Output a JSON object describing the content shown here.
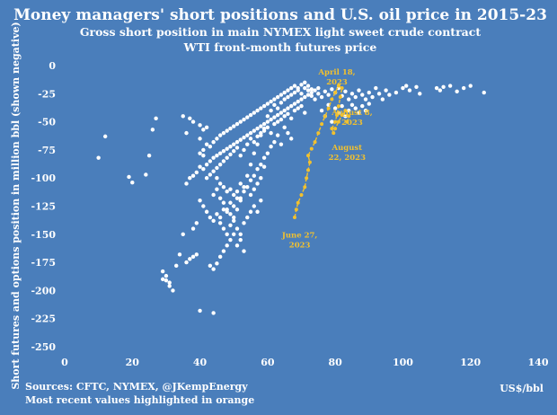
{
  "chart_data": {
    "type": "scatter",
    "title": "Money managers' short positions and U.S. oil price in 2015-23",
    "subtitle_lines": [
      "Gross short position in main NYMEX light sweet crude contract",
      "WTI front-month futures price"
    ],
    "xlabel": "US$/bbl",
    "ylabel": "Short futures and options position in million bbl (shown negative)",
    "xlim": [
      0,
      140
    ],
    "ylim": [
      -250,
      0
    ],
    "x_ticks": [
      0,
      20,
      40,
      60,
      80,
      100,
      120,
      140
    ],
    "y_ticks": [
      0,
      -25,
      -50,
      -75,
      -100,
      -125,
      -150,
      -175,
      -200,
      -225,
      -250
    ],
    "grid": false,
    "colors": {
      "background": "#4a7ebb",
      "text": "#ffffff",
      "historical": "#ffffff",
      "recent": "#f2c12e"
    },
    "footer": {
      "sources": "Sources: CFTC, NYMEX, @JKempEnergy",
      "note": "Most recent values highlighted in orange"
    },
    "annotations": [
      {
        "label": "April 18,\n2023",
        "x": 80.5,
        "y": -8
      },
      {
        "label": "August 8,\n2023",
        "x": 85,
        "y": -44
      },
      {
        "label": "August\n22, 2023",
        "x": 83.5,
        "y": -75
      },
      {
        "label": "June 27,\n2023",
        "x": 69.5,
        "y": -153
      }
    ],
    "series": [
      {
        "name": "2015-23",
        "points": [
          [
            10,
            -82
          ],
          [
            12,
            -63
          ],
          [
            19,
            -99
          ],
          [
            20,
            -104
          ],
          [
            24,
            -97
          ],
          [
            25,
            -80
          ],
          [
            26,
            -57
          ],
          [
            27,
            -47
          ],
          [
            35,
            -45
          ],
          [
            36,
            -60
          ],
          [
            35,
            -150
          ],
          [
            36,
            -175
          ],
          [
            37,
            -172
          ],
          [
            38,
            -170
          ],
          [
            39,
            -168
          ],
          [
            40,
            -218
          ],
          [
            44,
            -220
          ],
          [
            37,
            -47
          ],
          [
            38,
            -50
          ],
          [
            40,
            -53
          ],
          [
            41,
            -57
          ],
          [
            42,
            -55
          ],
          [
            40,
            -65
          ],
          [
            41,
            -75
          ],
          [
            29,
            -183
          ],
          [
            30,
            -187
          ],
          [
            30,
            -191
          ],
          [
            31,
            -196
          ],
          [
            32,
            -200
          ],
          [
            29,
            -190
          ],
          [
            31,
            -193
          ],
          [
            33,
            -178
          ],
          [
            34,
            -168
          ],
          [
            38,
            -145
          ],
          [
            39,
            -140
          ],
          [
            43,
            -178
          ],
          [
            44,
            -181
          ],
          [
            45,
            -176
          ],
          [
            46,
            -170
          ],
          [
            47,
            -165
          ],
          [
            48,
            -160
          ],
          [
            49,
            -155
          ],
          [
            50,
            -150
          ],
          [
            51,
            -145
          ],
          [
            52,
            -150
          ],
          [
            53,
            -140
          ],
          [
            54,
            -135
          ],
          [
            55,
            -130
          ],
          [
            56,
            -125
          ],
          [
            57,
            -130
          ],
          [
            58,
            -120
          ],
          [
            55,
            -115
          ],
          [
            56,
            -110
          ],
          [
            57,
            -105
          ],
          [
            58,
            -100
          ],
          [
            59,
            -90
          ],
          [
            36,
            -105
          ],
          [
            37,
            -100
          ],
          [
            38,
            -98
          ],
          [
            39,
            -95
          ],
          [
            40,
            -90
          ],
          [
            41,
            -92
          ],
          [
            42,
            -88
          ],
          [
            43,
            -85
          ],
          [
            44,
            -82
          ],
          [
            45,
            -80
          ],
          [
            46,
            -78
          ],
          [
            47,
            -76
          ],
          [
            48,
            -74
          ],
          [
            49,
            -72
          ],
          [
            50,
            -70
          ],
          [
            51,
            -68
          ],
          [
            52,
            -66
          ],
          [
            53,
            -64
          ],
          [
            54,
            -62
          ],
          [
            55,
            -60
          ],
          [
            56,
            -58
          ],
          [
            57,
            -56
          ],
          [
            58,
            -54
          ],
          [
            59,
            -52
          ],
          [
            60,
            -50
          ],
          [
            61,
            -48
          ],
          [
            62,
            -46
          ],
          [
            63,
            -44
          ],
          [
            64,
            -42
          ],
          [
            65,
            -40
          ],
          [
            66,
            -38
          ],
          [
            67,
            -36
          ],
          [
            68,
            -34
          ],
          [
            69,
            -32
          ],
          [
            70,
            -30
          ],
          [
            71,
            -28
          ],
          [
            72,
            -26
          ],
          [
            73,
            -24
          ],
          [
            74,
            -22
          ],
          [
            75,
            -20
          ],
          [
            40,
            -120
          ],
          [
            41,
            -125
          ],
          [
            42,
            -130
          ],
          [
            43,
            -135
          ],
          [
            44,
            -115
          ],
          [
            45,
            -110
          ],
          [
            46,
            -118
          ],
          [
            47,
            -122
          ],
          [
            48,
            -128
          ],
          [
            49,
            -132
          ],
          [
            50,
            -138
          ],
          [
            51,
            -128
          ],
          [
            52,
            -118
          ],
          [
            53,
            -108
          ],
          [
            54,
            -98
          ],
          [
            55,
            -88
          ],
          [
            56,
            -78
          ],
          [
            57,
            -70
          ],
          [
            58,
            -62
          ],
          [
            59,
            -58
          ],
          [
            60,
            -55
          ],
          [
            61,
            -60
          ],
          [
            62,
            -52
          ],
          [
            63,
            -50
          ],
          [
            64,
            -48
          ],
          [
            65,
            -45
          ],
          [
            66,
            -43
          ],
          [
            67,
            -47
          ],
          [
            68,
            -40
          ],
          [
            69,
            -38
          ],
          [
            70,
            -36
          ],
          [
            71,
            -42
          ],
          [
            42,
            -100
          ],
          [
            43,
            -97
          ],
          [
            44,
            -94
          ],
          [
            45,
            -91
          ],
          [
            46,
            -88
          ],
          [
            47,
            -85
          ],
          [
            48,
            -82
          ],
          [
            49,
            -79
          ],
          [
            50,
            -76
          ],
          [
            51,
            -73
          ],
          [
            52,
            -80
          ],
          [
            53,
            -75
          ],
          [
            54,
            -70
          ],
          [
            55,
            -65
          ],
          [
            56,
            -68
          ],
          [
            57,
            -63
          ],
          [
            58,
            -60
          ],
          [
            59,
            -56
          ],
          [
            60,
            -45
          ],
          [
            61,
            -40
          ],
          [
            62,
            -35
          ],
          [
            63,
            -38
          ],
          [
            64,
            -33
          ],
          [
            65,
            -30
          ],
          [
            66,
            -28
          ],
          [
            67,
            -26
          ],
          [
            68,
            -24
          ],
          [
            69,
            -22
          ],
          [
            70,
            -25
          ],
          [
            71,
            -20
          ],
          [
            72,
            -18
          ],
          [
            73,
            -21
          ],
          [
            46,
            -140
          ],
          [
            47,
            -145
          ],
          [
            48,
            -150
          ],
          [
            49,
            -142
          ],
          [
            50,
            -135
          ],
          [
            51,
            -160
          ],
          [
            52,
            -155
          ],
          [
            53,
            -165
          ],
          [
            45,
            -100
          ],
          [
            46,
            -105
          ],
          [
            47,
            -108
          ],
          [
            48,
            -112
          ],
          [
            49,
            -110
          ],
          [
            50,
            -115
          ],
          [
            51,
            -112
          ],
          [
            52,
            -105
          ],
          [
            40,
            -78
          ],
          [
            41,
            -80
          ],
          [
            42,
            -70
          ],
          [
            43,
            -72
          ],
          [
            44,
            -68
          ],
          [
            45,
            -65
          ],
          [
            46,
            -62
          ],
          [
            47,
            -60
          ],
          [
            48,
            -58
          ],
          [
            49,
            -56
          ],
          [
            50,
            -54
          ],
          [
            51,
            -52
          ],
          [
            52,
            -50
          ],
          [
            53,
            -48
          ],
          [
            54,
            -46
          ],
          [
            55,
            -44
          ],
          [
            56,
            -42
          ],
          [
            57,
            -40
          ],
          [
            58,
            -38
          ],
          [
            59,
            -36
          ],
          [
            60,
            -34
          ],
          [
            61,
            -32
          ],
          [
            62,
            -30
          ],
          [
            63,
            -28
          ],
          [
            64,
            -26
          ],
          [
            65,
            -24
          ],
          [
            66,
            -22
          ],
          [
            67,
            -20
          ],
          [
            68,
            -18
          ],
          [
            69,
            -20
          ],
          [
            70,
            -17
          ],
          [
            71,
            -15
          ],
          [
            72,
            -22
          ],
          [
            73,
            -27
          ],
          [
            74,
            -30
          ],
          [
            75,
            -25
          ],
          [
            76,
            -28
          ],
          [
            77,
            -23
          ],
          [
            78,
            -26
          ],
          [
            79,
            -21
          ],
          [
            80,
            -24
          ],
          [
            81,
            -20
          ],
          [
            82,
            -27
          ],
          [
            83,
            -23
          ],
          [
            84,
            -30
          ],
          [
            85,
            -25
          ],
          [
            86,
            -28
          ],
          [
            87,
            -22
          ],
          [
            88,
            -26
          ],
          [
            89,
            -30
          ],
          [
            90,
            -24
          ],
          [
            91,
            -28
          ],
          [
            92,
            -20
          ],
          [
            93,
            -25
          ],
          [
            94,
            -30
          ],
          [
            95,
            -22
          ],
          [
            96,
            -26
          ],
          [
            98,
            -24
          ],
          [
            100,
            -20
          ],
          [
            101,
            -18
          ],
          [
            102,
            -22
          ],
          [
            104,
            -19
          ],
          [
            105,
            -25
          ],
          [
            110,
            -20
          ],
          [
            111,
            -22
          ],
          [
            112,
            -19
          ],
          [
            114,
            -18
          ],
          [
            116,
            -23
          ],
          [
            118,
            -20
          ],
          [
            120,
            -18
          ],
          [
            124,
            -24
          ],
          [
            76,
            -40
          ],
          [
            77,
            -45
          ],
          [
            78,
            -35
          ],
          [
            79,
            -50
          ],
          [
            80,
            -38
          ],
          [
            81,
            -42
          ],
          [
            82,
            -36
          ],
          [
            83,
            -45
          ],
          [
            84,
            -40
          ],
          [
            85,
            -35
          ],
          [
            86,
            -38
          ],
          [
            87,
            -42
          ],
          [
            88,
            -36
          ],
          [
            89,
            -40
          ],
          [
            90,
            -34
          ],
          [
            65,
            -55
          ],
          [
            66,
            -60
          ],
          [
            67,
            -65
          ],
          [
            64,
            -70
          ],
          [
            63,
            -62
          ],
          [
            62,
            -68
          ],
          [
            61,
            -72
          ],
          [
            60,
            -78
          ],
          [
            59,
            -82
          ],
          [
            58,
            -88
          ],
          [
            57,
            -92
          ],
          [
            56,
            -98
          ],
          [
            55,
            -102
          ],
          [
            54,
            -108
          ],
          [
            53,
            -112
          ],
          [
            52,
            -120
          ],
          [
            51,
            -118
          ],
          [
            50,
            -125
          ],
          [
            49,
            -122
          ],
          [
            48,
            -130
          ],
          [
            47,
            -128
          ],
          [
            46,
            -135
          ],
          [
            45,
            -132
          ],
          [
            44,
            -138
          ]
        ]
      },
      {
        "name": "Most recent values",
        "points": [
          [
            68,
            -135
          ],
          [
            68.5,
            -128
          ],
          [
            69,
            -122
          ],
          [
            70,
            -115
          ],
          [
            71,
            -108
          ],
          [
            71.5,
            -100
          ],
          [
            72,
            -93
          ],
          [
            72.5,
            -86
          ],
          [
            72,
            -80
          ],
          [
            73,
            -74
          ],
          [
            74,
            -68
          ],
          [
            75,
            -60
          ],
          [
            76,
            -52
          ],
          [
            77,
            -45
          ],
          [
            78,
            -38
          ],
          [
            79,
            -30
          ],
          [
            80,
            -24
          ],
          [
            81,
            -18
          ],
          [
            82,
            -20
          ],
          [
            81.5,
            -28
          ],
          [
            81,
            -36
          ],
          [
            80.5,
            -44
          ],
          [
            80,
            -50
          ],
          [
            79,
            -56
          ],
          [
            79.5,
            -60
          ],
          [
            80,
            -56
          ],
          [
            81,
            -50
          ],
          [
            82,
            -44
          ],
          [
            83,
            -40
          ],
          [
            84,
            -45
          ],
          [
            83.5,
            -50
          ]
        ]
      }
    ]
  }
}
